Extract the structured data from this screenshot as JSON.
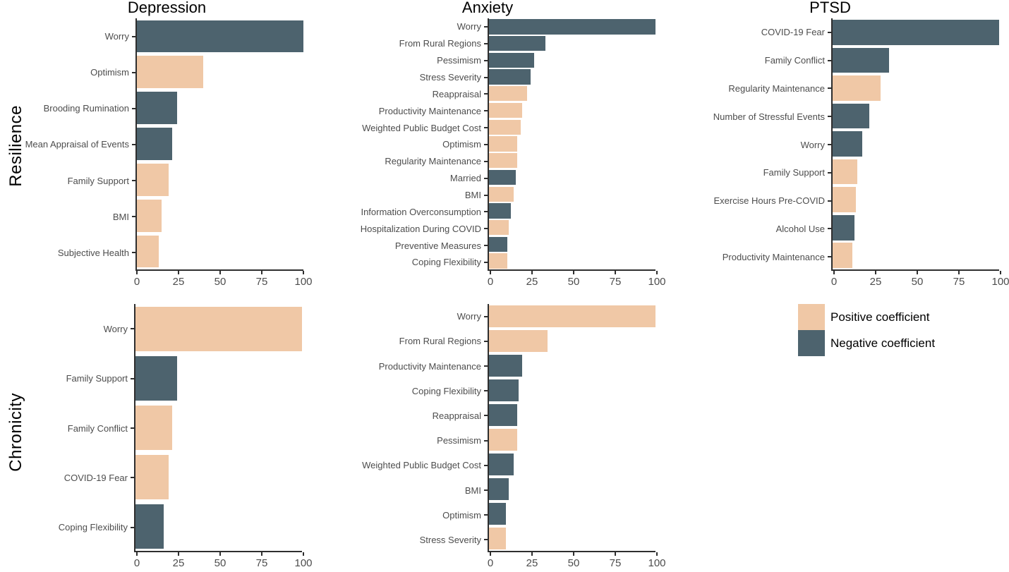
{
  "figure": {
    "background": "#ffffff",
    "colors": {
      "positive": "#f0c8a6",
      "negative": "#4d636e"
    },
    "row_labels": [
      "Resilience",
      "Chronicity"
    ],
    "column_titles": [
      "Depression",
      "Anxiety",
      "PTSD"
    ],
    "legend": {
      "items": [
        {
          "label": "Positive coefficient",
          "coefficient": "positive",
          "color": "#f0c8a6"
        },
        {
          "label": "Negative coefficient",
          "coefficient": "negative",
          "color": "#4d636e"
        }
      ]
    }
  },
  "chart_data": [
    {
      "type": "bar",
      "orientation": "horizontal",
      "row": "Resilience",
      "column": "Depression",
      "title": "Depression",
      "xlim": [
        0,
        100
      ],
      "x_ticks": [
        0,
        25,
        50,
        75,
        100
      ],
      "grid": false,
      "bars": [
        {
          "label": "Worry",
          "value": 100,
          "coefficient": "negative"
        },
        {
          "label": "Optimism",
          "value": 40,
          "coefficient": "positive"
        },
        {
          "label": "Brooding Rumination",
          "value": 24,
          "coefficient": "negative"
        },
        {
          "label": "Mean Appraisal of Events",
          "value": 21,
          "coefficient": "negative"
        },
        {
          "label": "Family Support",
          "value": 19,
          "coefficient": "positive"
        },
        {
          "label": "BMI",
          "value": 15,
          "coefficient": "positive"
        },
        {
          "label": "Subjective Health",
          "value": 13,
          "coefficient": "positive"
        }
      ]
    },
    {
      "type": "bar",
      "orientation": "horizontal",
      "row": "Resilience",
      "column": "Anxiety",
      "title": "Anxiety",
      "xlim": [
        0,
        100
      ],
      "x_ticks": [
        0,
        25,
        50,
        75,
        100
      ],
      "grid": false,
      "bars": [
        {
          "label": "Worry",
          "value": 100,
          "coefficient": "negative"
        },
        {
          "label": "From Rural Regions",
          "value": 34,
          "coefficient": "negative"
        },
        {
          "label": "Pessimism",
          "value": 27,
          "coefficient": "negative"
        },
        {
          "label": "Stress Severity",
          "value": 25,
          "coefficient": "negative"
        },
        {
          "label": "Reappraisal",
          "value": 23,
          "coefficient": "positive"
        },
        {
          "label": "Productivity Maintenance",
          "value": 20,
          "coefficient": "positive"
        },
        {
          "label": "Weighted Public Budget Cost",
          "value": 19,
          "coefficient": "positive"
        },
        {
          "label": "Optimism",
          "value": 17,
          "coefficient": "positive"
        },
        {
          "label": "Regularity Maintenance",
          "value": 17,
          "coefficient": "positive"
        },
        {
          "label": "Married",
          "value": 16,
          "coefficient": "negative"
        },
        {
          "label": "BMI",
          "value": 15,
          "coefficient": "positive"
        },
        {
          "label": "Information Overconsumption",
          "value": 13,
          "coefficient": "negative"
        },
        {
          "label": "Hospitalization During COVID",
          "value": 12,
          "coefficient": "positive"
        },
        {
          "label": "Preventive Measures",
          "value": 11,
          "coefficient": "negative"
        },
        {
          "label": "Coping Flexibility",
          "value": 11,
          "coefficient": "positive"
        }
      ]
    },
    {
      "type": "bar",
      "orientation": "horizontal",
      "row": "Resilience",
      "column": "PTSD",
      "title": "PTSD",
      "xlim": [
        0,
        100
      ],
      "x_ticks": [
        0,
        25,
        50,
        75,
        100
      ],
      "grid": false,
      "bars": [
        {
          "label": "COVID-19 Fear",
          "value": 100,
          "coefficient": "negative"
        },
        {
          "label": "Family Conflict",
          "value": 34,
          "coefficient": "negative"
        },
        {
          "label": "Regularity Maintenance",
          "value": 29,
          "coefficient": "positive"
        },
        {
          "label": "Number of Stressful Events",
          "value": 22,
          "coefficient": "negative"
        },
        {
          "label": "Worry",
          "value": 18,
          "coefficient": "negative"
        },
        {
          "label": "Family Support",
          "value": 15,
          "coefficient": "positive"
        },
        {
          "label": "Exercise Hours Pre-COVID",
          "value": 14,
          "coefficient": "positive"
        },
        {
          "label": "Alcohol Use",
          "value": 13,
          "coefficient": "negative"
        },
        {
          "label": "Productivity Maintenance",
          "value": 12,
          "coefficient": "positive"
        }
      ]
    },
    {
      "type": "bar",
      "orientation": "horizontal",
      "row": "Chronicity",
      "column": "Depression",
      "title": "",
      "xlim": [
        0,
        100
      ],
      "x_ticks": [
        0,
        25,
        50,
        75,
        100
      ],
      "grid": false,
      "bars": [
        {
          "label": "Worry",
          "value": 100,
          "coefficient": "positive"
        },
        {
          "label": "Family Support",
          "value": 25,
          "coefficient": "negative"
        },
        {
          "label": "Family Conflict",
          "value": 22,
          "coefficient": "positive"
        },
        {
          "label": "COVID-19 Fear",
          "value": 20,
          "coefficient": "positive"
        },
        {
          "label": "Coping Flexibility",
          "value": 17,
          "coefficient": "negative"
        }
      ]
    },
    {
      "type": "bar",
      "orientation": "horizontal",
      "row": "Chronicity",
      "column": "Anxiety",
      "title": "",
      "xlim": [
        0,
        100
      ],
      "x_ticks": [
        0,
        25,
        50,
        75,
        100
      ],
      "grid": false,
      "bars": [
        {
          "label": "Worry",
          "value": 100,
          "coefficient": "positive"
        },
        {
          "label": "From Rural Regions",
          "value": 35,
          "coefficient": "positive"
        },
        {
          "label": "Productivity Maintenance",
          "value": 20,
          "coefficient": "negative"
        },
        {
          "label": "Coping Flexibility",
          "value": 18,
          "coefficient": "negative"
        },
        {
          "label": "Reappraisal",
          "value": 17,
          "coefficient": "negative"
        },
        {
          "label": "Pessimism",
          "value": 17,
          "coefficient": "positive"
        },
        {
          "label": "Weighted Public Budget Cost",
          "value": 15,
          "coefficient": "negative"
        },
        {
          "label": "BMI",
          "value": 12,
          "coefficient": "negative"
        },
        {
          "label": "Optimism",
          "value": 10,
          "coefficient": "negative"
        },
        {
          "label": "Stress Severity",
          "value": 10,
          "coefficient": "positive"
        }
      ]
    }
  ]
}
